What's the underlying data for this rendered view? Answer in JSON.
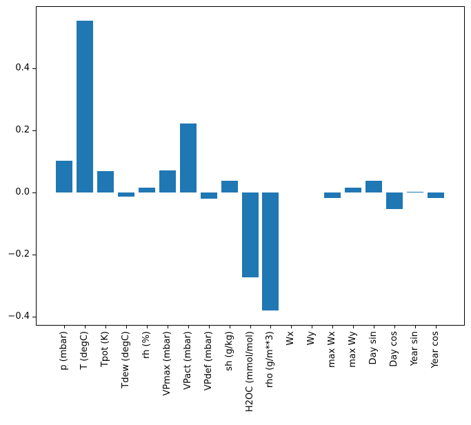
{
  "figure": {
    "background": "#ffffff",
    "title": ""
  },
  "chart_data": {
    "type": "bar",
    "title": "",
    "xlabel": "",
    "ylabel": "",
    "grid": false,
    "legend": null,
    "bar_color": "#1f77b4",
    "spine_color": "#000000",
    "text_color": "#000000",
    "x_tick_rotation": 90,
    "ylim": [
      -0.426,
      0.6
    ],
    "yticks": {
      "values": [
        0.4,
        0.2,
        0.0,
        -0.2,
        -0.4
      ],
      "labels": [
        "0.4",
        "0.2",
        "0.0",
        "−0.2",
        "−0.4"
      ]
    },
    "categories": [
      "p (mbar)",
      "T (degC)",
      "Tpot (K)",
      "Tdew (degC)",
      "rh (%)",
      "VPmax (mbar)",
      "VPact (mbar)",
      "VPdef (mbar)",
      "sh (g/kg)",
      "H2OC (mmol/mol)",
      "rho (g/m**3)",
      "Wx",
      "Wy",
      "max Wx",
      "max Wy",
      "Day sin",
      "Day cos",
      "Year sin",
      "Year cos"
    ],
    "values": [
      0.103,
      0.553,
      0.068,
      -0.013,
      0.015,
      0.072,
      0.222,
      -0.021,
      0.037,
      -0.273,
      -0.379,
      0.0,
      0.0,
      -0.018,
      0.016,
      0.037,
      -0.053,
      0.003,
      -0.018
    ]
  }
}
